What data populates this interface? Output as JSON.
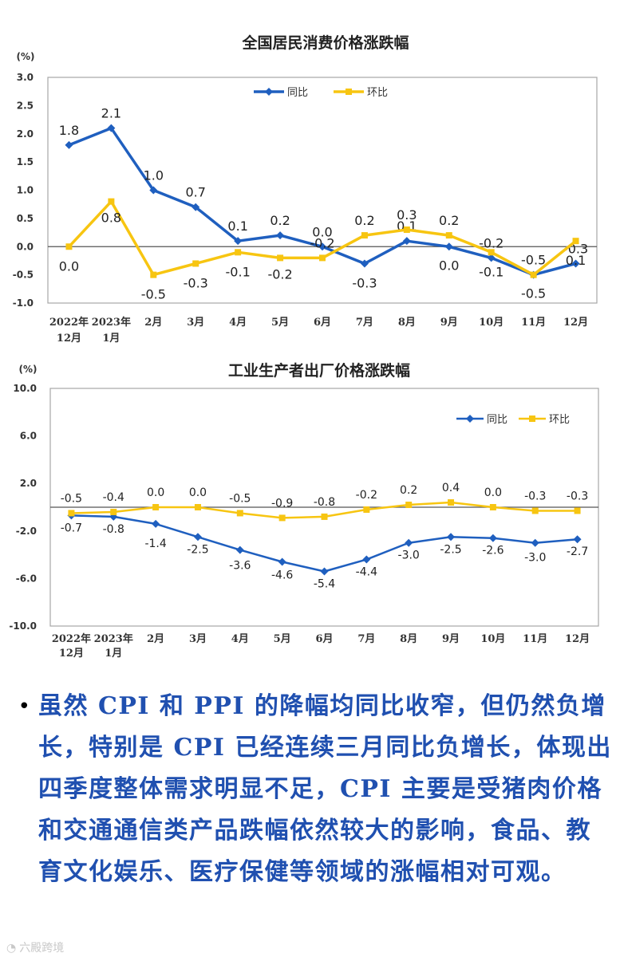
{
  "chart_data": [
    {
      "id": "cpi",
      "type": "line",
      "title": "全国居民消费价格涨跌幅",
      "unit": "(%)",
      "categories": [
        [
          "2022年",
          "12月"
        ],
        [
          "2023年",
          "1月"
        ],
        [
          "2月"
        ],
        [
          "3月"
        ],
        [
          "4月"
        ],
        [
          "5月"
        ],
        [
          "6月"
        ],
        [
          "7月"
        ],
        [
          "8月"
        ],
        [
          "9月"
        ],
        [
          "10月"
        ],
        [
          "11月"
        ],
        [
          "12月"
        ]
      ],
      "yticks": [
        "3.0",
        "2.5",
        "2.0",
        "1.5",
        "1.0",
        "0.5",
        "0.0",
        "-0.5",
        "-1.0"
      ],
      "ylim": [
        -1.0,
        3.0
      ],
      "legend_position": "top-center",
      "series": [
        {
          "name": "同比",
          "color": "#1f5fbf",
          "marker": "diamond",
          "values": [
            1.8,
            2.1,
            1.0,
            0.7,
            0.1,
            0.2,
            0.0,
            -0.3,
            0.1,
            0.0,
            -0.2,
            -0.5,
            -0.3
          ],
          "labels": [
            "1.8",
            "2.1",
            "1.0",
            "0.7",
            "0.1",
            "0.2",
            "0.0",
            "-0.3",
            "0.1",
            "0.0",
            "-0.2",
            "-0.5",
            "-0.3"
          ]
        },
        {
          "name": "环比",
          "color": "#f7c511",
          "marker": "square",
          "values": [
            0.0,
            0.8,
            -0.5,
            -0.3,
            -0.1,
            -0.2,
            -0.2,
            0.2,
            0.3,
            0.2,
            -0.1,
            -0.5,
            0.1
          ],
          "labels": [
            "0.0",
            "0.8",
            "-0.5",
            "-0.3",
            "-0.1",
            "-0.2",
            "-0.2",
            "0.2",
            "0.3",
            "0.2",
            "-0.1",
            "-0.5",
            "0.1"
          ]
        }
      ]
    },
    {
      "id": "ppi",
      "type": "line",
      "title": "工业生产者出厂价格涨跌幅",
      "unit": "(%)",
      "categories": [
        [
          "2022年",
          "12月"
        ],
        [
          "2023年",
          "1月"
        ],
        [
          "2月"
        ],
        [
          "3月"
        ],
        [
          "4月"
        ],
        [
          "5月"
        ],
        [
          "6月"
        ],
        [
          "7月"
        ],
        [
          "8月"
        ],
        [
          "9月"
        ],
        [
          "10月"
        ],
        [
          "11月"
        ],
        [
          "12月"
        ]
      ],
      "yticks": [
        "10.0",
        "6.0",
        "2.0",
        "-2.0",
        "-6.0",
        "-10.0"
      ],
      "ylim": [
        -10.0,
        10.0
      ],
      "legend_position": "top-right",
      "series": [
        {
          "name": "同比",
          "color": "#1f5fbf",
          "marker": "diamond",
          "values": [
            -0.7,
            -0.8,
            -1.4,
            -2.5,
            -3.6,
            -4.6,
            -5.4,
            -4.4,
            -3.0,
            -2.5,
            -2.6,
            -3.0,
            -2.7
          ],
          "labels": [
            "-0.7",
            "-0.8",
            "-1.4",
            "-2.5",
            "-3.6",
            "-4.6",
            "-5.4",
            "-4.4",
            "-3.0",
            "-2.5",
            "-2.6",
            "-3.0",
            "-2.7"
          ]
        },
        {
          "name": "环比",
          "color": "#f7c511",
          "marker": "square",
          "values": [
            -0.5,
            -0.4,
            0.0,
            0.0,
            -0.5,
            -0.9,
            -0.8,
            -0.2,
            0.2,
            0.4,
            0.0,
            -0.3,
            -0.3
          ],
          "labels": [
            "-0.5",
            "-0.4",
            "0.0",
            "0.0",
            "-0.5",
            "-0.9",
            "-0.8",
            "-0.2",
            "0.2",
            "0.4",
            "0.0",
            "-0.3",
            "-0.3"
          ]
        }
      ]
    }
  ],
  "text": {
    "bullet": "•",
    "paragraph": "虽然 CPI 和 PPI 的降幅均同比收窄，但仍然负增长，特别是 CPI 已经连续三月同比负增长，体现出四季度整体需求明显不足，CPI 主要是受猪肉价格和交通通信类产品跌幅依然较大的影响，食品、教育文化娱乐、医疗保健等领域的涨幅相对可观。",
    "watermark": "六殿跨境"
  }
}
